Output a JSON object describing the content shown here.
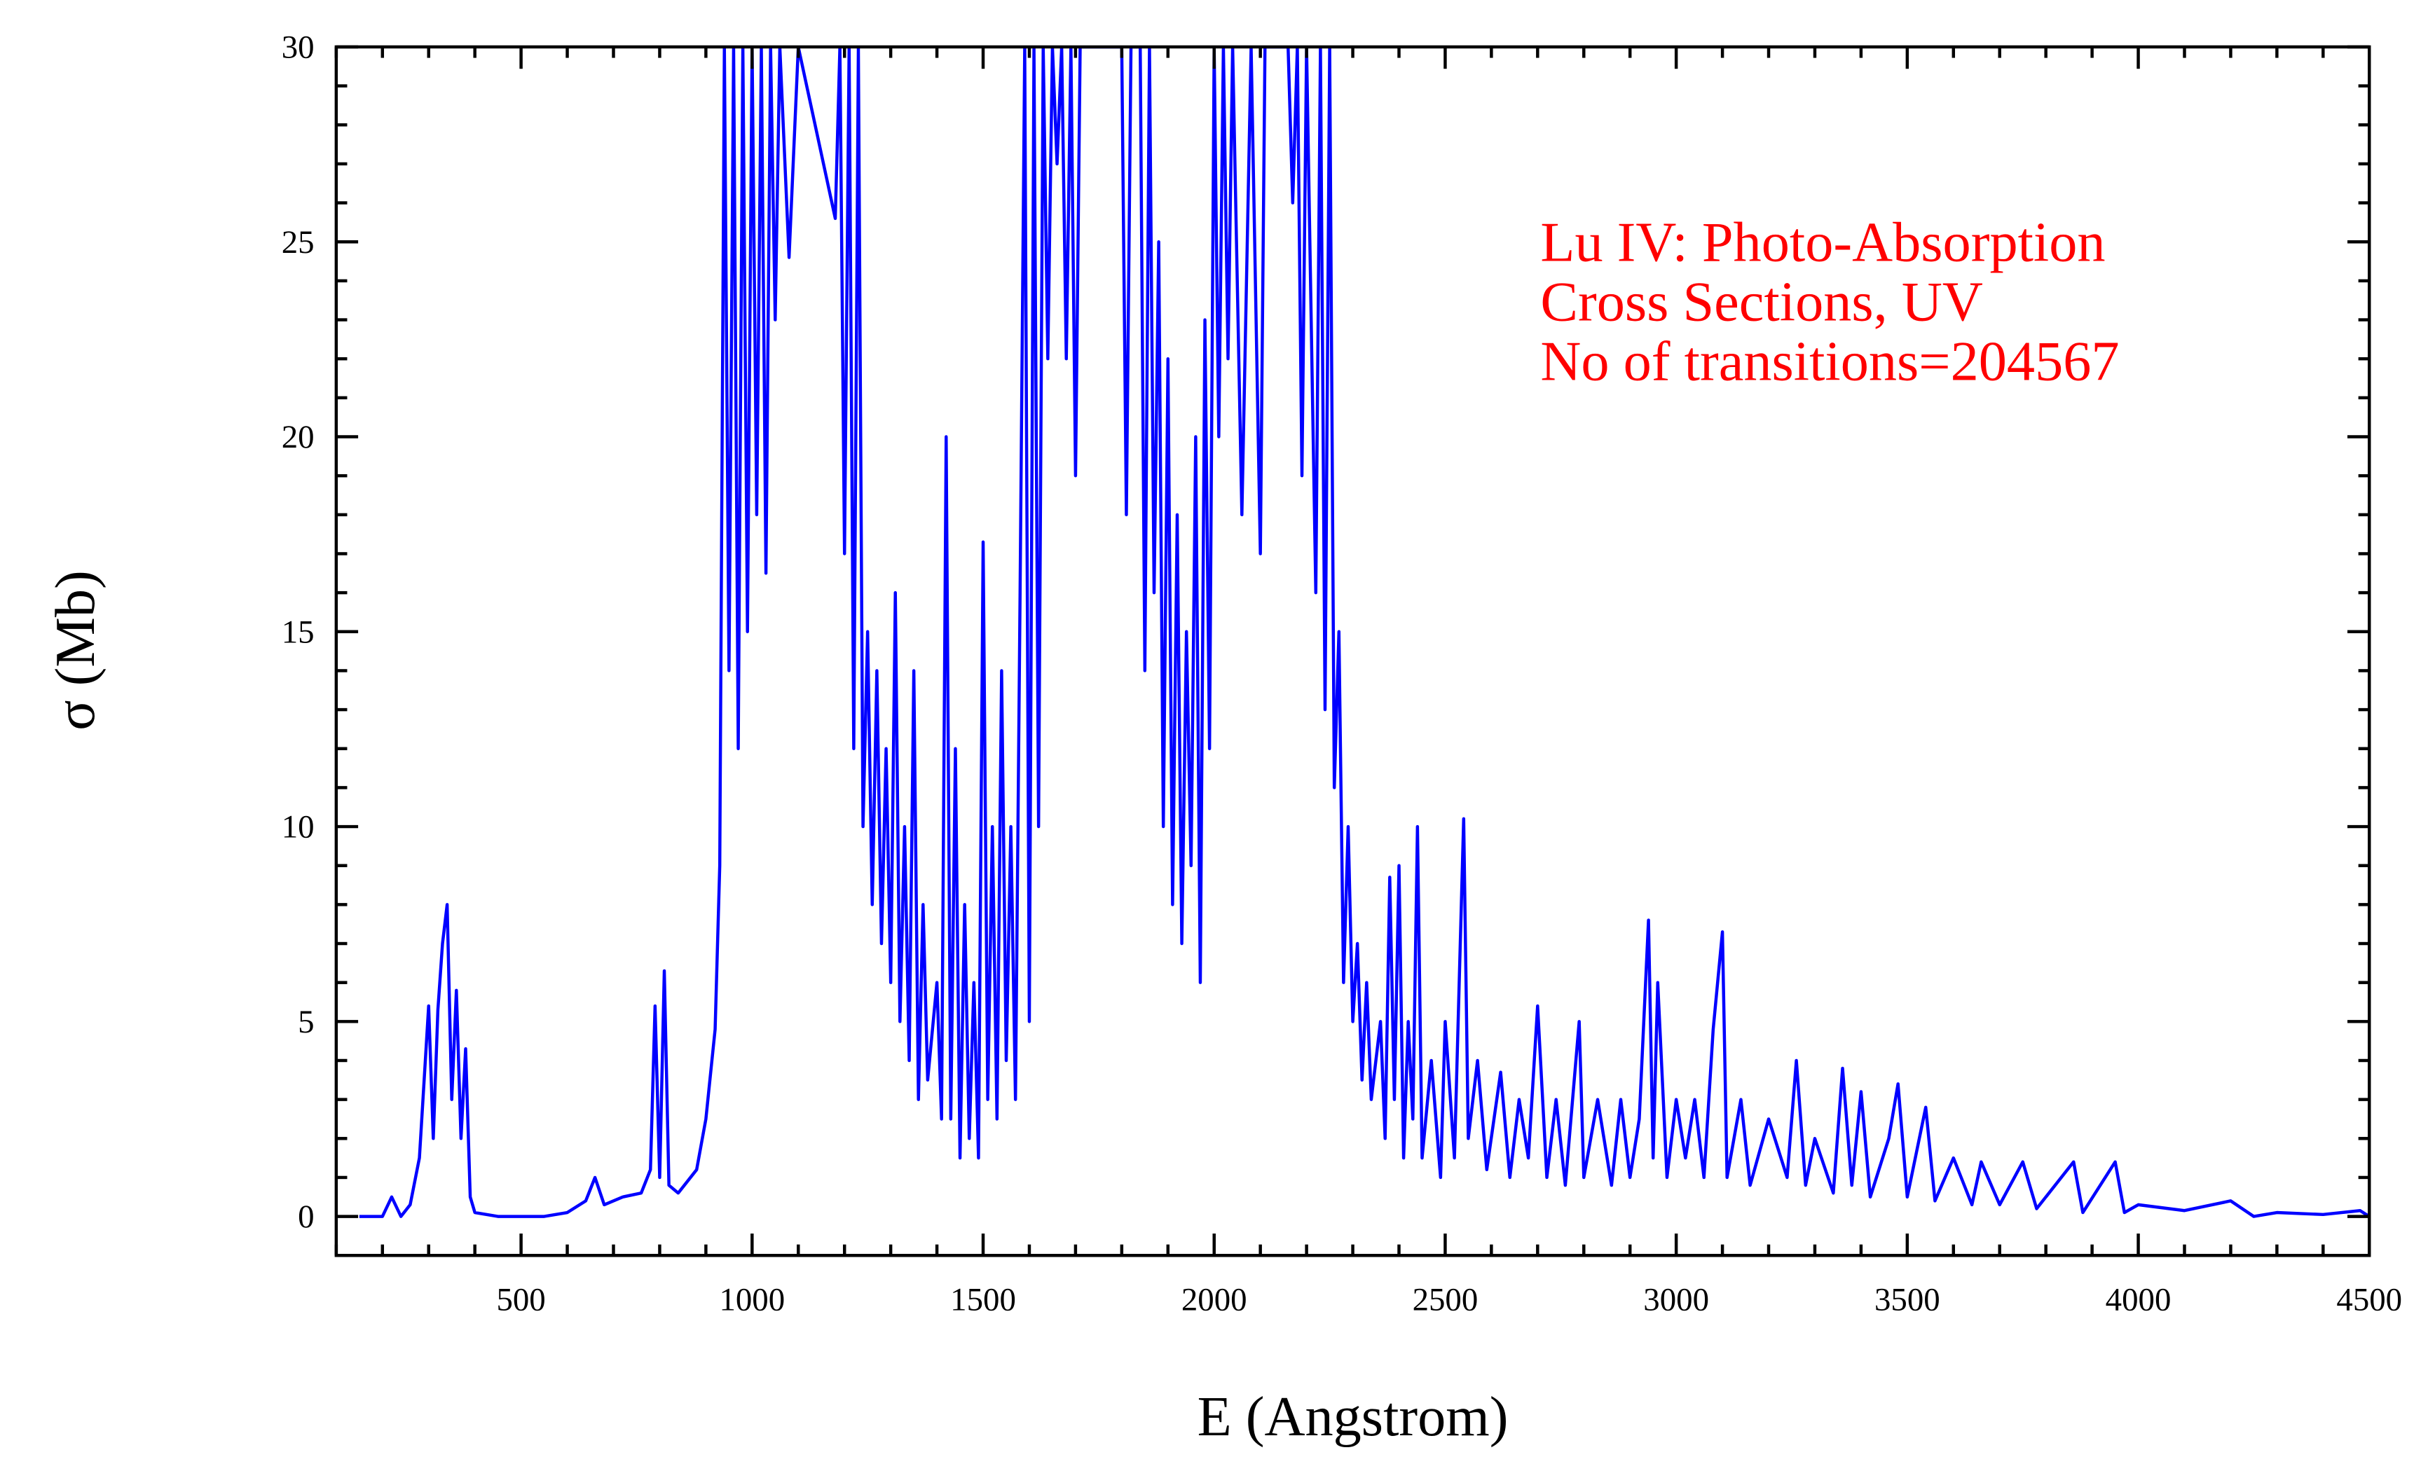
{
  "chart_data": {
    "type": "line",
    "xlabel": "E (Angstrom)",
    "ylabel": "σ (Mb)",
    "annotation": [
      "Lu IV: Photo-Absorption",
      "Cross Sections, UV",
      "No of transitions=204567"
    ],
    "annotation_color": "#ff0000",
    "color": "#0000ff",
    "xlim": [
      100,
      4500
    ],
    "ylim": [
      -1,
      30
    ],
    "xticks": [
      500,
      1000,
      1500,
      2000,
      2500,
      3000,
      3500,
      4000,
      4500
    ],
    "yticks": [
      0,
      5,
      10,
      15,
      20,
      25,
      30
    ],
    "xminorticks": [
      100,
      200,
      300,
      400,
      600,
      700,
      800,
      900,
      1100,
      1200,
      1300,
      1400,
      1600,
      1700,
      1800,
      1900,
      2100,
      2200,
      2300,
      2400,
      2600,
      2700,
      2800,
      2900,
      3100,
      3200,
      3300,
      3400,
      3600,
      3700,
      3800,
      3900,
      4100,
      4200,
      4300,
      4400
    ],
    "yminorticks": [
      -1,
      1,
      2,
      3,
      4,
      6,
      7,
      8,
      9,
      11,
      12,
      13,
      14,
      16,
      17,
      18,
      19,
      21,
      22,
      23,
      24,
      26,
      27,
      28,
      29
    ],
    "x": [
      150,
      200,
      220,
      240,
      260,
      280,
      300,
      310,
      320,
      330,
      340,
      350,
      360,
      370,
      380,
      390,
      400,
      450,
      500,
      550,
      600,
      640,
      660,
      680,
      720,
      760,
      780,
      790,
      800,
      810,
      820,
      840,
      880,
      900,
      920,
      930,
      940,
      950,
      960,
      970,
      980,
      990,
      1000,
      1010,
      1020,
      1030,
      1040,
      1050,
      1060,
      1080,
      1100,
      1180,
      1190,
      1200,
      1210,
      1220,
      1230,
      1240,
      1250,
      1260,
      1270,
      1280,
      1290,
      1300,
      1310,
      1320,
      1330,
      1340,
      1350,
      1360,
      1370,
      1380,
      1400,
      1410,
      1420,
      1430,
      1440,
      1450,
      1460,
      1470,
      1480,
      1490,
      1500,
      1510,
      1520,
      1530,
      1540,
      1550,
      1560,
      1570,
      1580,
      1590,
      1600,
      1610,
      1620,
      1630,
      1640,
      1650,
      1660,
      1670,
      1680,
      1690,
      1700,
      1710,
      1740,
      1800,
      1810,
      1820,
      1840,
      1850,
      1860,
      1870,
      1880,
      1890,
      1900,
      1910,
      1920,
      1930,
      1940,
      1950,
      1960,
      1970,
      1980,
      1990,
      2000,
      2010,
      2020,
      2030,
      2040,
      2060,
      2080,
      2100,
      2110,
      2160,
      2170,
      2180,
      2190,
      2200,
      2220,
      2230,
      2240,
      2250,
      2260,
      2270,
      2280,
      2290,
      2300,
      2310,
      2320,
      2330,
      2340,
      2360,
      2370,
      2380,
      2390,
      2400,
      2410,
      2420,
      2430,
      2440,
      2450,
      2470,
      2490,
      2500,
      2520,
      2540,
      2550,
      2570,
      2590,
      2620,
      2640,
      2660,
      2680,
      2700,
      2720,
      2740,
      2760,
      2790,
      2800,
      2830,
      2860,
      2880,
      2900,
      2920,
      2940,
      2950,
      2960,
      2980,
      3000,
      3020,
      3040,
      3060,
      3080,
      3100,
      3110,
      3140,
      3160,
      3200,
      3240,
      3260,
      3280,
      3300,
      3340,
      3360,
      3380,
      3400,
      3420,
      3460,
      3480,
      3500,
      3540,
      3560,
      3600,
      3640,
      3660,
      3700,
      3750,
      3780,
      3860,
      3880,
      3950,
      3970,
      4000,
      4100,
      4200,
      4250,
      4300,
      4400,
      4480,
      4500
    ],
    "values": [
      0,
      0,
      0.5,
      0,
      0.3,
      1.5,
      5.4,
      2,
      5.3,
      7,
      8,
      3,
      5.8,
      2,
      4.3,
      0.5,
      0.1,
      0,
      0,
      0,
      0.1,
      0.4,
      1,
      0.3,
      0.5,
      0.6,
      1.2,
      5.4,
      1,
      6.3,
      0.8,
      0.6,
      1.2,
      2.5,
      4.8,
      9,
      30,
      14,
      30,
      12,
      30,
      15,
      30,
      18,
      30,
      16.5,
      30,
      23,
      30,
      24.6,
      30,
      25.6,
      30,
      17,
      30,
      12,
      30,
      10,
      15,
      8,
      14,
      7,
      12,
      6,
      16,
      5,
      10,
      4,
      14,
      3,
      8,
      3.5,
      6,
      2.5,
      20,
      2.5,
      12,
      1.5,
      8,
      2,
      6,
      1.5,
      17.3,
      3,
      10,
      2.5,
      14,
      4,
      10,
      3,
      16,
      30,
      5,
      30,
      10,
      30,
      22,
      30,
      27,
      30,
      22,
      30,
      19,
      30,
      30,
      30,
      18,
      30,
      30,
      14,
      30,
      16,
      25,
      10,
      22,
      8,
      18,
      7,
      15,
      9,
      20,
      6,
      23,
      12,
      30,
      20,
      30,
      22,
      30,
      18,
      30,
      17,
      30,
      30,
      26,
      30,
      19,
      30,
      16,
      30,
      13,
      30,
      11,
      15,
      6,
      10,
      5,
      7,
      3.5,
      6,
      3,
      5,
      2,
      8.7,
      3,
      9,
      1.5,
      5,
      2.5,
      10,
      1.5,
      4,
      1,
      5,
      1.5,
      10.2,
      2,
      4,
      1.2,
      3.7,
      1,
      3,
      1.5,
      5.4,
      1,
      3,
      0.8,
      5,
      1,
      3,
      0.8,
      3,
      1,
      2.5,
      7.6,
      1.5,
      6,
      1,
      3,
      1.5,
      3,
      1,
      4.8,
      7.3,
      1,
      3,
      0.8,
      2.5,
      1,
      4,
      0.8,
      2,
      0.6,
      3.8,
      0.8,
      3.2,
      0.5,
      2,
      3.4,
      0.5,
      2.8,
      0.4,
      1.5,
      0.3,
      1.4,
      0.3,
      1.4,
      0.2,
      1.4,
      0.1,
      1.4,
      0.1,
      0.3,
      0.15,
      0.4,
      0,
      0.1,
      0.05,
      0.15,
      0
    ]
  }
}
